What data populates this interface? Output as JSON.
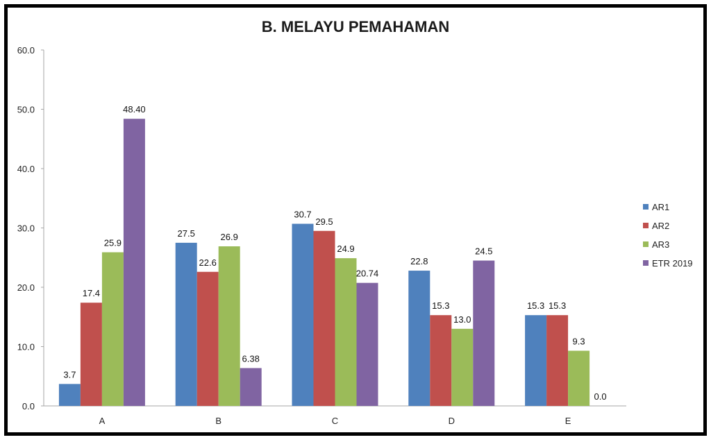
{
  "chart_data": {
    "type": "bar",
    "title": "B. MELAYU PEMAHAMAN",
    "xlabel": "",
    "ylabel": "",
    "ylim": [
      0,
      60
    ],
    "yticks": [
      "0.0",
      "10.0",
      "20.0",
      "30.0",
      "40.0",
      "50.0",
      "60.0"
    ],
    "categories": [
      "A",
      "B",
      "C",
      "D",
      "E"
    ],
    "grid": false,
    "legend_position": "right",
    "series": [
      {
        "name": "AR1",
        "color": "#4F81BD",
        "values": [
          3.7,
          27.5,
          30.7,
          22.8,
          15.3
        ],
        "labels": [
          "3.7",
          "27.5",
          "30.7",
          "22.8",
          "15.3"
        ]
      },
      {
        "name": "AR2",
        "color": "#C0504D",
        "values": [
          17.4,
          22.6,
          29.5,
          15.3,
          15.3
        ],
        "labels": [
          "17.4",
          "22.6",
          "29.5",
          "15.3",
          "15.3"
        ]
      },
      {
        "name": "AR3",
        "color": "#9BBB59",
        "values": [
          25.9,
          26.9,
          24.9,
          13.0,
          9.3
        ],
        "labels": [
          "25.9",
          "26.9",
          "24.9",
          "13.0",
          "9.3"
        ]
      },
      {
        "name": "ETR 2019",
        "color": "#8064A2",
        "values": [
          48.4,
          6.38,
          20.74,
          24.5,
          0.0
        ],
        "labels": [
          "48.40",
          "6.38",
          "20.74",
          "24.5",
          "0.0"
        ]
      }
    ]
  }
}
